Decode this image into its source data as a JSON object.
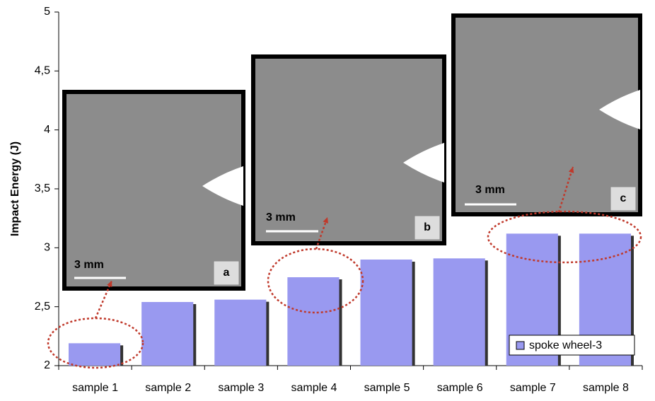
{
  "chart_data": {
    "type": "bar",
    "y_label": "Impact Energy (J)",
    "categories": [
      "sample 1",
      "sample 2",
      "sample 3",
      "sample 4",
      "sample 5",
      "sample 6",
      "sample 7",
      "sample 8"
    ],
    "series": [
      {
        "name": "spoke wheel-3",
        "color": "#9999f0",
        "values": [
          2.19,
          2.54,
          2.56,
          2.75,
          2.9,
          2.91,
          3.12,
          3.12
        ]
      }
    ],
    "ylim": [
      2,
      5
    ],
    "yticks": [
      2,
      {
        "value": 2.5,
        "label": "2,5"
      },
      3,
      {
        "value": 3.5,
        "label": "3,5"
      },
      4,
      {
        "value": 4.5,
        "label": "4,5"
      },
      5
    ],
    "legend": "lower right",
    "annotations": [
      {
        "label": "a",
        "scale": "3 mm"
      },
      {
        "label": "b",
        "scale": "3 mm"
      },
      {
        "label": "c",
        "scale": "3 mm"
      }
    ]
  }
}
